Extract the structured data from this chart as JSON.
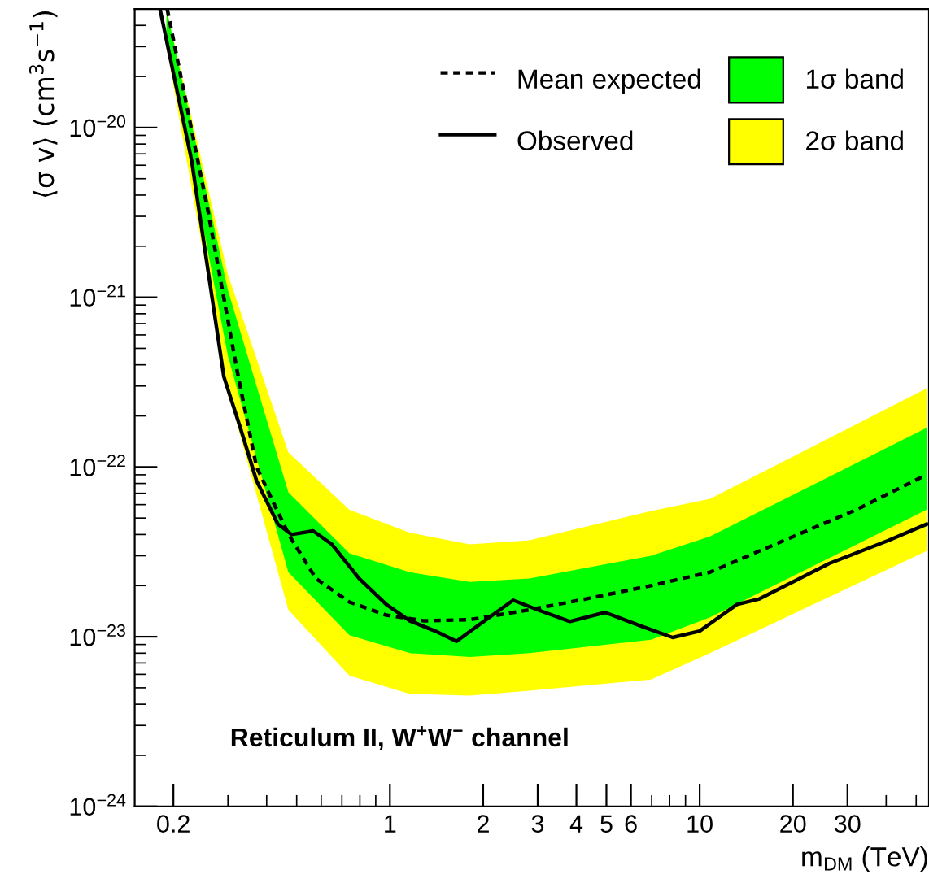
{
  "chart_data": {
    "type": "line",
    "xlabel": "m$_{DM}$ (TeV)",
    "ylabel": "⟨σ v⟩ (cm$^{3}$s$^{−1}$)",
    "annotations": [
      "Reticulum II, W$^{+}$W$^{−}$ channel"
    ],
    "log": "xy",
    "xlim": [
      0.15,
      55
    ],
    "ylim": [
      1e-24,
      5e-20
    ],
    "xticks": [
      0.2,
      1,
      2,
      3,
      4,
      5,
      6,
      10,
      20,
      30
    ],
    "yticks": [
      {
        "value": 1e-24,
        "label": "10$^{−24}$"
      },
      {
        "value": 1e-23,
        "label": "10$^{−23}$"
      },
      {
        "value": 1e-22,
        "label": "10$^{−22}$"
      },
      {
        "value": 1e-21,
        "label": "10$^{−21}$"
      },
      {
        "value": 1e-20,
        "label": "10$^{−20}$"
      }
    ],
    "grid": false,
    "legend": "top right",
    "series": [
      {
        "name": "2σ band",
        "color": "#ffff00",
        "x": [
          0.19,
          0.3,
          0.47,
          0.74,
          1.16,
          1.81,
          2.82,
          6.97,
          10.8,
          54
        ],
        "values": [
          null,
          null,
          null,
          null,
          null,
          null,
          null,
          null,
          null,
          null
        ],
        "lower": [
          3e-20,
          2.8e-22,
          1.44e-23,
          5.9e-24,
          4.6e-24,
          4.5e-24,
          4.8e-24,
          5.6e-24,
          8e-24,
          3.2e-23
        ],
        "upper": [
          5e-20,
          1.36e-21,
          1.22e-22,
          5.6e-23,
          4.1e-23,
          3.5e-23,
          3.7e-23,
          5.5e-23,
          6.5e-23,
          2.9e-22
        ]
      },
      {
        "name": "1σ band",
        "color": "#00ff00",
        "x": [
          0.19,
          0.3,
          0.47,
          0.74,
          1.16,
          1.81,
          2.82,
          6.97,
          10.8,
          54
        ],
        "values": [
          null,
          null,
          null,
          null,
          null,
          null,
          null,
          null,
          null,
          null
        ],
        "lower": [
          3.5e-20,
          4.5e-22,
          2.4e-23,
          1.02e-23,
          8e-24,
          7.6e-24,
          8e-24,
          9.6e-24,
          1.3e-23,
          5.6e-23
        ],
        "upper": [
          5e-20,
          1.1e-21,
          7.1e-23,
          3.1e-23,
          2.4e-23,
          2.1e-23,
          2.2e-23,
          3e-23,
          3.9e-23,
          1.7e-22
        ]
      },
      {
        "name": "Mean expected",
        "color": "#000000",
        "line_style": "dotted",
        "x": [
          0.191,
          0.258,
          0.322,
          0.371,
          0.471,
          0.577,
          0.74,
          0.973,
          1.29,
          1.81,
          2.82,
          4.3,
          6.97,
          10.8,
          17.5,
          32,
          54
        ],
        "values": [
          5e-20,
          3.3e-21,
          3.6e-22,
          1e-22,
          4e-23,
          2.2e-23,
          1.6e-23,
          1.34e-23,
          1.24e-23,
          1.26e-23,
          1.44e-23,
          1.67e-23,
          2e-23,
          2.4e-23,
          3.5e-23,
          5.6e-23,
          9e-23
        ]
      },
      {
        "name": "Observed",
        "color": "#000000",
        "line_style": "solid",
        "x": [
          0.181,
          0.229,
          0.291,
          0.329,
          0.371,
          0.435,
          0.482,
          0.565,
          0.65,
          0.796,
          0.973,
          1.16,
          1.4,
          1.64,
          1.92,
          2.5,
          3.0,
          3.81,
          4.95,
          6.43,
          8.18,
          10,
          13.2,
          15.6,
          26.2,
          40.8,
          54
        ],
        "values": [
          5e-20,
          6.4e-21,
          3.4e-22,
          1.7e-22,
          8.3e-23,
          4.6e-23,
          4e-23,
          4.2e-23,
          3.5e-23,
          2.2e-23,
          1.55e-23,
          1.24e-23,
          1.08e-23,
          9.4e-24,
          1.16e-23,
          1.64e-23,
          1.44e-23,
          1.23e-23,
          1.39e-23,
          1.16e-23,
          9.9e-24,
          1.08e-23,
          1.55e-23,
          1.67e-23,
          2.7e-23,
          3.7e-23,
          4.6e-23
        ]
      }
    ]
  }
}
